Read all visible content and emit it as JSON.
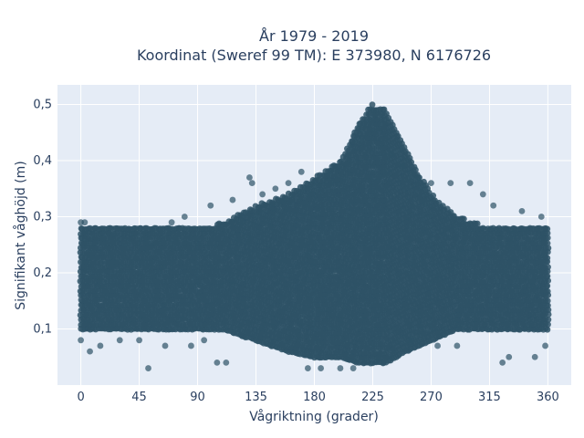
{
  "chart_data": {
    "type": "scatter",
    "title_line1": "År 1979 - 2019",
    "title_line2": "Koordinat (Sweref 99 TM): E 373980, N 6176726",
    "xlabel": "Vågriktning (grader)",
    "ylabel": "Signifikant våghöjd (m)",
    "xlim": [
      -18,
      378
    ],
    "ylim": [
      0.0,
      0.535
    ],
    "x_ticks": [
      0,
      45,
      90,
      135,
      180,
      225,
      270,
      315,
      360
    ],
    "x_tick_labels": [
      "0",
      "45",
      "90",
      "135",
      "180",
      "225",
      "270",
      "315",
      "360"
    ],
    "y_ticks": [
      0.1,
      0.2,
      0.3,
      0.4,
      0.5
    ],
    "y_tick_labels": [
      "0,1",
      "0,2",
      "0,3",
      "0,4",
      "0,5"
    ],
    "grid": true,
    "marker_color": "#2e5266",
    "plot_background": "#e5ecf6",
    "envelope_description": "dense band of points across all directions",
    "envelope": {
      "x": [
        0,
        45,
        90,
        110,
        135,
        160,
        180,
        200,
        215,
        225,
        235,
        250,
        270,
        290,
        315,
        340,
        360
      ],
      "upper": [
        0.28,
        0.28,
        0.28,
        0.29,
        0.32,
        0.34,
        0.37,
        0.4,
        0.47,
        0.5,
        0.49,
        0.42,
        0.34,
        0.3,
        0.28,
        0.28,
        0.28
      ],
      "lower": [
        0.1,
        0.1,
        0.1,
        0.1,
        0.08,
        0.06,
        0.05,
        0.05,
        0.04,
        0.04,
        0.04,
        0.06,
        0.08,
        0.1,
        0.1,
        0.1,
        0.1
      ]
    },
    "outliers": [
      {
        "x": 0,
        "y": 0.29
      },
      {
        "x": 3,
        "y": 0.29
      },
      {
        "x": 7,
        "y": 0.06
      },
      {
        "x": 0,
        "y": 0.08
      },
      {
        "x": 15,
        "y": 0.07
      },
      {
        "x": 30,
        "y": 0.08
      },
      {
        "x": 45,
        "y": 0.08
      },
      {
        "x": 52,
        "y": 0.03
      },
      {
        "x": 65,
        "y": 0.07
      },
      {
        "x": 70,
        "y": 0.29
      },
      {
        "x": 80,
        "y": 0.3
      },
      {
        "x": 85,
        "y": 0.07
      },
      {
        "x": 95,
        "y": 0.08
      },
      {
        "x": 100,
        "y": 0.32
      },
      {
        "x": 105,
        "y": 0.04
      },
      {
        "x": 112,
        "y": 0.04
      },
      {
        "x": 117,
        "y": 0.33
      },
      {
        "x": 130,
        "y": 0.37
      },
      {
        "x": 132,
        "y": 0.36
      },
      {
        "x": 140,
        "y": 0.34
      },
      {
        "x": 150,
        "y": 0.35
      },
      {
        "x": 160,
        "y": 0.36
      },
      {
        "x": 170,
        "y": 0.38
      },
      {
        "x": 175,
        "y": 0.03
      },
      {
        "x": 185,
        "y": 0.03
      },
      {
        "x": 200,
        "y": 0.03
      },
      {
        "x": 210,
        "y": 0.03
      },
      {
        "x": 240,
        "y": 0.41
      },
      {
        "x": 248,
        "y": 0.39
      },
      {
        "x": 260,
        "y": 0.37
      },
      {
        "x": 270,
        "y": 0.36
      },
      {
        "x": 285,
        "y": 0.36
      },
      {
        "x": 300,
        "y": 0.36
      },
      {
        "x": 310,
        "y": 0.34
      },
      {
        "x": 318,
        "y": 0.32
      },
      {
        "x": 325,
        "y": 0.04
      },
      {
        "x": 330,
        "y": 0.05
      },
      {
        "x": 340,
        "y": 0.31
      },
      {
        "x": 350,
        "y": 0.05
      },
      {
        "x": 355,
        "y": 0.3
      },
      {
        "x": 358,
        "y": 0.07
      },
      {
        "x": 290,
        "y": 0.07
      },
      {
        "x": 275,
        "y": 0.07
      },
      {
        "x": 255,
        "y": 0.08
      }
    ]
  }
}
